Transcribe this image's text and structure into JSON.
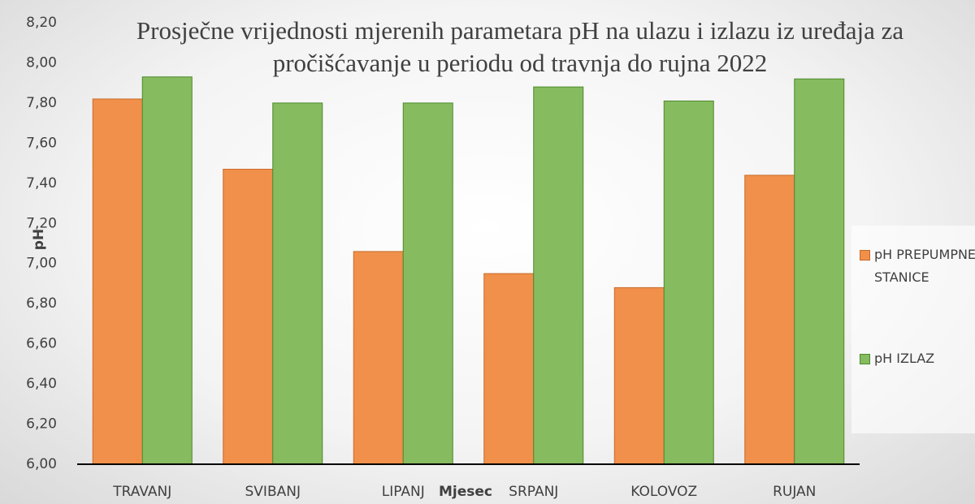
{
  "chart_data": {
    "type": "bar",
    "title": "Prosječne vrijednosti mjerenih parametara pH na ulazu i izlazu iz uređaja za pročišćavanje u periodu od travnja do rujna 2022",
    "x_label": "Mjesec",
    "y_label": "pH",
    "categories": [
      "TRAVANJ",
      "SVIBANJ",
      "LIPANJ",
      "SRPANJ",
      "KOLOVOZ",
      "RUJAN"
    ],
    "series": [
      {
        "name": "pH PREPUMPNE STANICE",
        "color": "#f0904a",
        "values": [
          7.82,
          7.47,
          7.06,
          6.95,
          6.88,
          7.44
        ]
      },
      {
        "name": "pH IZLAZ",
        "color": "#86bb60",
        "values": [
          7.93,
          7.8,
          7.8,
          7.88,
          7.81,
          7.92
        ]
      }
    ],
    "ylim": [
      6.0,
      8.2
    ],
    "yticks": [
      {
        "value": 6.0,
        "label": "6,00"
      },
      {
        "value": 6.2,
        "label": "6,20"
      },
      {
        "value": 6.4,
        "label": "6,40"
      },
      {
        "value": 6.6,
        "label": "6,60"
      },
      {
        "value": 6.8,
        "label": "6,80"
      },
      {
        "value": 7.0,
        "label": "7,00"
      },
      {
        "value": 7.2,
        "label": "7,20"
      },
      {
        "value": 7.4,
        "label": "7,40"
      },
      {
        "value": 7.6,
        "label": "7,60"
      },
      {
        "value": 7.8,
        "label": "7,80"
      },
      {
        "value": 8.0,
        "label": "8,00"
      },
      {
        "value": 8.2,
        "label": "8,20"
      }
    ],
    "grid": false,
    "legend": "right"
  }
}
